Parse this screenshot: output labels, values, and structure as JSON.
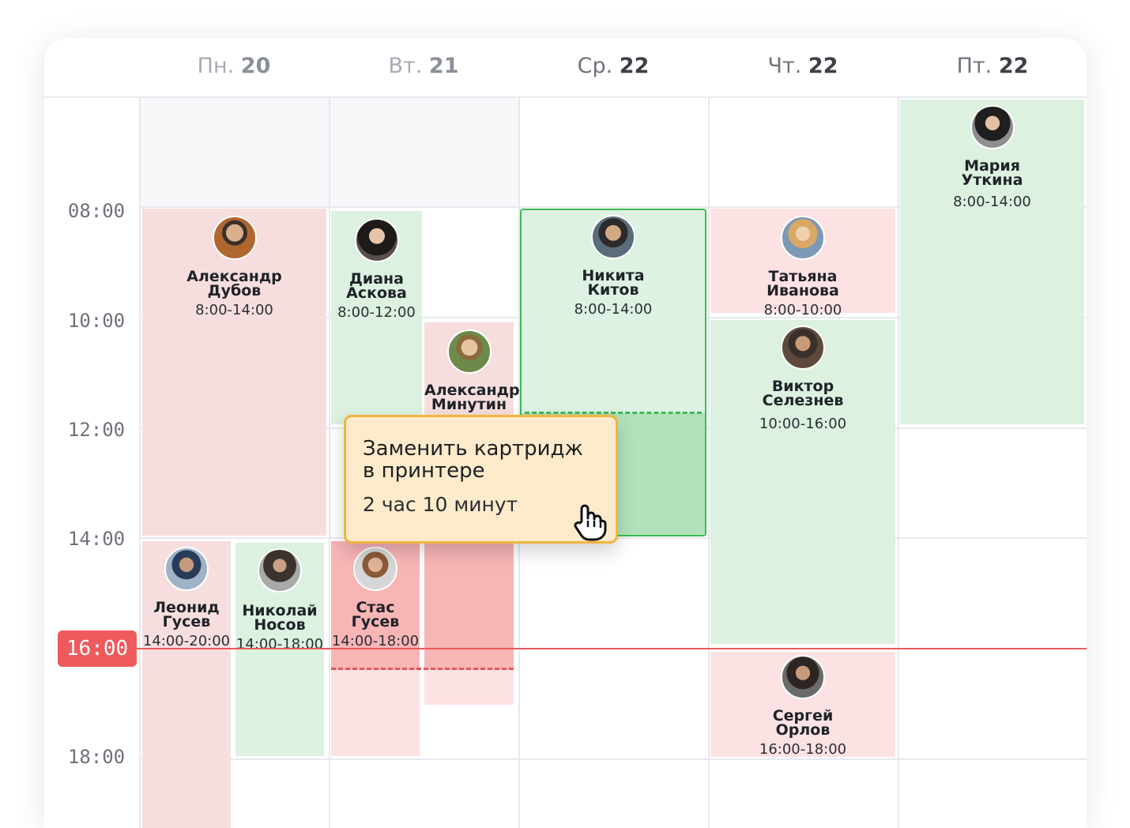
{
  "days": [
    {
      "name": "Пн.",
      "date": "20"
    },
    {
      "name": "Вт.",
      "date": "21"
    },
    {
      "name": "Ср.",
      "date": "22"
    },
    {
      "name": "Чт.",
      "date": "22"
    },
    {
      "name": "Пт.",
      "date": "22"
    }
  ],
  "time_labels": [
    "08:00",
    "10:00",
    "12:00",
    "14:00",
    "18:00"
  ],
  "current_time": "16:00",
  "events": [
    {
      "name_line1": "Александр",
      "name_line2": "Дубов",
      "time": "8:00-14:00"
    },
    {
      "name_line1": "Диана",
      "name_line2": "Аскова",
      "time": "8:00-12:00"
    },
    {
      "name_line1": "Александр",
      "name_line2": "Минутин",
      "time": ""
    },
    {
      "name_line1": "Никита",
      "name_line2": "Китов",
      "time": "8:00-14:00"
    },
    {
      "name_line1": "Татьяна",
      "name_line2": "Иванова",
      "time": "8:00-10:00"
    },
    {
      "name_line1": "Виктор",
      "name_line2": "Селезнев",
      "time": "10:00-16:00"
    },
    {
      "name_line1": "Мария",
      "name_line2": "Уткина",
      "time": "8:00-14:00"
    },
    {
      "name_line1": "Леонид",
      "name_line2": "Гусев",
      "time": "14:00-20:00"
    },
    {
      "name_line1": "Николай",
      "name_line2": "Носов",
      "time": "14:00-18:00"
    },
    {
      "name_line1": "Стас",
      "name_line2": "Гусев",
      "time": "14:00-18:00"
    },
    {
      "name_line1": "Сергей",
      "name_line2": "Орлов",
      "time": "16:00-18:00"
    }
  ],
  "tooltip": {
    "title_line1": "Заменить картридж",
    "title_line2": "в принтере",
    "duration": "2 час 10 минут"
  },
  "colors": {
    "accent_red": "#ef5b5d",
    "event_green": "#dcf1e0",
    "event_pink": "#f7dede",
    "tooltip_bg": "#fdebcb",
    "tooltip_border": "#f1b541",
    "selected_border": "#3cba54"
  },
  "icons": {
    "cursor": "hand-pointer-icon"
  }
}
